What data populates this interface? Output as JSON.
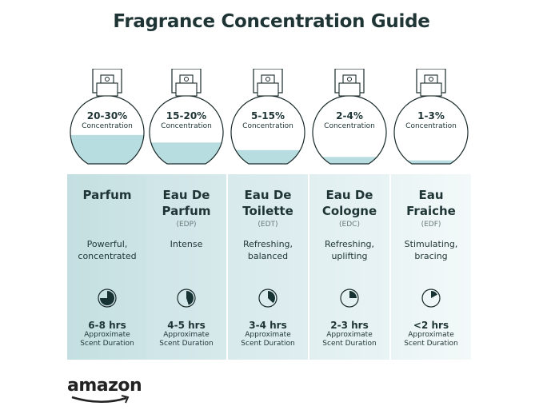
{
  "title": "Fragrance Concentration Guide",
  "logo": "amazon",
  "colors": {
    "text": "#1f3535",
    "liquid": "#b8dde0",
    "clock_fill": "#173232"
  },
  "types": [
    {
      "concentration": "20-30%",
      "concentration_label": "Concentration",
      "bottle_fill_fraction": 0.42,
      "name_line1": "Parfum",
      "name_line2": "",
      "abbr": "",
      "desc_line1": "Powerful,",
      "desc_line2": "concentrated",
      "duration": "6-8 hrs",
      "duration_label1": "Approximate",
      "duration_label2": "Scent Duration",
      "clock_fraction": 0.75
    },
    {
      "concentration": "15-20%",
      "concentration_label": "Concentration",
      "bottle_fill_fraction": 0.31,
      "name_line1": "Eau De",
      "name_line2": "Parfum",
      "abbr": "(EDP)",
      "desc_line1": "Intense",
      "desc_line2": "",
      "duration": "4-5 hrs",
      "duration_label1": "Approximate",
      "duration_label2": "Scent Duration",
      "clock_fraction": 0.45
    },
    {
      "concentration": "5-15%",
      "concentration_label": "Concentration",
      "bottle_fill_fraction": 0.2,
      "name_line1": "Eau De",
      "name_line2": "Toilette",
      "abbr": "(EDT)",
      "desc_line1": "Refreshing,",
      "desc_line2": "balanced",
      "duration": "3-4 hrs",
      "duration_label1": "Approximate",
      "duration_label2": "Scent Duration",
      "clock_fraction": 0.37
    },
    {
      "concentration": "2-4%",
      "concentration_label": "Concentration",
      "bottle_fill_fraction": 0.1,
      "name_line1": "Eau De",
      "name_line2": "Cologne",
      "abbr": "(EDC)",
      "desc_line1": "Refreshing,",
      "desc_line2": "uplifting",
      "duration": "2-3 hrs",
      "duration_label1": "Approximate",
      "duration_label2": "Scent Duration",
      "clock_fraction": 0.25
    },
    {
      "concentration": "1-3%",
      "concentration_label": "Concentration",
      "bottle_fill_fraction": 0.05,
      "name_line1": "Eau",
      "name_line2": "Fraiche",
      "abbr": "(EDF)",
      "desc_line1": "Stimulating,",
      "desc_line2": "bracing",
      "duration": "<2 hrs",
      "duration_label1": "Approximate",
      "duration_label2": "Scent Duration",
      "clock_fraction": 0.17
    }
  ]
}
